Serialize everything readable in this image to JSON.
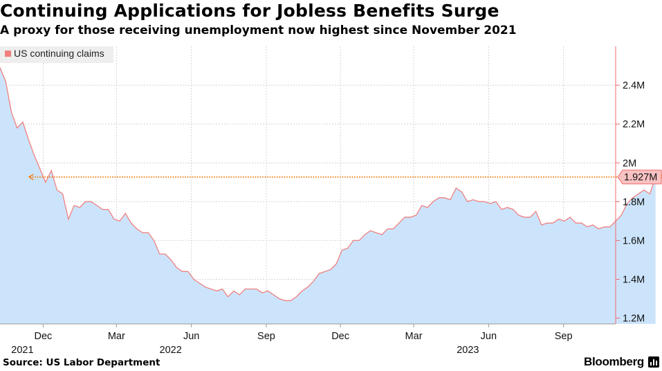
{
  "title": "Continuing Applications for Jobless Benefits Surge",
  "subtitle": "A proxy for those receiving unemployment now highest since November 2021",
  "source": "Source: US Labor Department",
  "brand": "Bloomberg",
  "brand_icon": "bar-chart-icon",
  "colors": {
    "line": "#f08080",
    "fill": "#cce4fb",
    "highlight": "#f47c0e",
    "label_bg": "#f9c2c2",
    "grid": "#d4d4d4",
    "axis": "#f06a6a"
  },
  "chart_data": {
    "type": "area",
    "legend": {
      "entries": [
        "US continuing claims"
      ],
      "placement": "top-left"
    },
    "series": [
      {
        "name": "US continuing claims",
        "unit": "M",
        "x_start": "2021-10-09",
        "x_step_days": 7,
        "values": [
          2.49,
          2.42,
          2.26,
          2.18,
          2.21,
          2.12,
          2.04,
          1.97,
          1.9,
          1.96,
          1.86,
          1.84,
          1.71,
          1.78,
          1.77,
          1.8,
          1.8,
          1.78,
          1.76,
          1.76,
          1.71,
          1.7,
          1.74,
          1.69,
          1.66,
          1.64,
          1.64,
          1.6,
          1.53,
          1.53,
          1.5,
          1.46,
          1.44,
          1.44,
          1.4,
          1.38,
          1.36,
          1.35,
          1.34,
          1.35,
          1.31,
          1.34,
          1.32,
          1.35,
          1.35,
          1.35,
          1.33,
          1.34,
          1.32,
          1.3,
          1.29,
          1.29,
          1.31,
          1.34,
          1.36,
          1.39,
          1.43,
          1.44,
          1.45,
          1.48,
          1.55,
          1.56,
          1.6,
          1.6,
          1.63,
          1.65,
          1.64,
          1.63,
          1.66,
          1.66,
          1.69,
          1.72,
          1.72,
          1.73,
          1.78,
          1.77,
          1.8,
          1.82,
          1.82,
          1.81,
          1.87,
          1.85,
          1.8,
          1.81,
          1.8,
          1.8,
          1.79,
          1.8,
          1.76,
          1.77,
          1.76,
          1.73,
          1.72,
          1.72,
          1.75,
          1.68,
          1.69,
          1.69,
          1.71,
          1.7,
          1.72,
          1.69,
          1.69,
          1.67,
          1.68,
          1.66,
          1.67,
          1.67,
          1.7,
          1.73,
          1.79,
          1.82,
          1.84,
          1.86,
          1.84,
          1.927
        ]
      }
    ],
    "x_ticks": [
      {
        "label": "Dec",
        "date": "2021-12-01"
      },
      {
        "label": "Mar",
        "date": "2022-03-01"
      },
      {
        "label": "Jun",
        "date": "2022-06-01"
      },
      {
        "label": "Sep",
        "date": "2022-09-01"
      },
      {
        "label": "Dec",
        "date": "2022-12-01"
      },
      {
        "label": "Mar",
        "date": "2023-03-01"
      },
      {
        "label": "Jun",
        "date": "2023-06-01"
      },
      {
        "label": "Sep",
        "date": "2023-09-01"
      }
    ],
    "year_labels": [
      {
        "label": "2021",
        "date": "2021-12-01"
      },
      {
        "label": "2022",
        "date": "2022-06-01"
      },
      {
        "label": "2023",
        "date": "2023-06-01"
      }
    ],
    "y_ticks": [
      1.2,
      1.4,
      1.6,
      1.8,
      2.0,
      2.2,
      2.4
    ],
    "y_tick_labels": [
      "1.2M",
      "1.4M",
      "1.6M",
      "1.8M",
      "2M",
      "2.2M",
      "2.4M"
    ],
    "ylim": [
      1.17,
      2.6
    ],
    "xlim": [
      "2021-10-09",
      "2023-11-04"
    ],
    "y_axis_side": "right",
    "grid": true,
    "annotation": {
      "label": "1.927M",
      "value": 1.927,
      "reference_start": "2021-11-13",
      "style": "dotted arrow"
    }
  }
}
